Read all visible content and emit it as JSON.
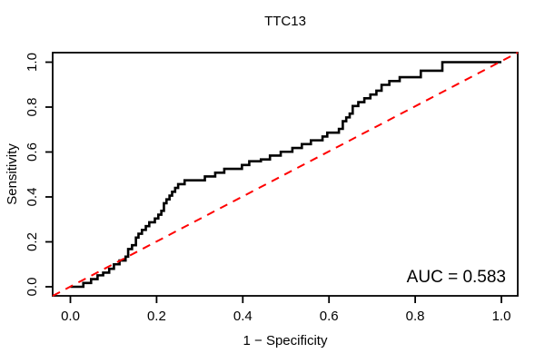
{
  "chart_data": {
    "type": "line",
    "subtype": "roc-step-curve",
    "title": "TTC13",
    "xlabel": "1 − Specificity",
    "ylabel": "Sensitivity",
    "xlim": [
      0,
      1
    ],
    "ylim": [
      0,
      1
    ],
    "grid": false,
    "x_ticks": [
      0.0,
      0.2,
      0.4,
      0.6,
      0.8,
      1.0
    ],
    "y_ticks": [
      0.0,
      0.2,
      0.4,
      0.6,
      0.8,
      1.0
    ],
    "x_tick_labels": [
      "0.0",
      "0.2",
      "0.4",
      "0.6",
      "0.8",
      "1.0"
    ],
    "y_tick_labels": [
      "0.0",
      "0.2",
      "0.4",
      "0.6",
      "0.8",
      "1.0"
    ],
    "annotation": "AUC = 0.583",
    "auc_value": 0.583,
    "series": [
      {
        "name": "roc-curve",
        "type": "step",
        "color": "#000000",
        "line_style": "solid",
        "points": [
          [
            0.0,
            0.0
          ],
          [
            0.03,
            0.017
          ],
          [
            0.048,
            0.034
          ],
          [
            0.063,
            0.051
          ],
          [
            0.076,
            0.063
          ],
          [
            0.09,
            0.08
          ],
          [
            0.101,
            0.1
          ],
          [
            0.114,
            0.117
          ],
          [
            0.128,
            0.134
          ],
          [
            0.134,
            0.168
          ],
          [
            0.143,
            0.185
          ],
          [
            0.152,
            0.219
          ],
          [
            0.158,
            0.236
          ],
          [
            0.166,
            0.253
          ],
          [
            0.175,
            0.27
          ],
          [
            0.183,
            0.287
          ],
          [
            0.196,
            0.304
          ],
          [
            0.204,
            0.321
          ],
          [
            0.211,
            0.338
          ],
          [
            0.217,
            0.372
          ],
          [
            0.223,
            0.389
          ],
          [
            0.23,
            0.406
          ],
          [
            0.236,
            0.423
          ],
          [
            0.243,
            0.44
          ],
          [
            0.25,
            0.457
          ],
          [
            0.265,
            0.474
          ],
          [
            0.312,
            0.491
          ],
          [
            0.336,
            0.508
          ],
          [
            0.357,
            0.525
          ],
          [
            0.398,
            0.542
          ],
          [
            0.415,
            0.559
          ],
          [
            0.442,
            0.567
          ],
          [
            0.463,
            0.584
          ],
          [
            0.488,
            0.601
          ],
          [
            0.515,
            0.618
          ],
          [
            0.537,
            0.635
          ],
          [
            0.558,
            0.652
          ],
          [
            0.585,
            0.669
          ],
          [
            0.596,
            0.686
          ],
          [
            0.623,
            0.703
          ],
          [
            0.632,
            0.737
          ],
          [
            0.64,
            0.754
          ],
          [
            0.648,
            0.771
          ],
          [
            0.655,
            0.805
          ],
          [
            0.668,
            0.822
          ],
          [
            0.682,
            0.839
          ],
          [
            0.696,
            0.856
          ],
          [
            0.71,
            0.873
          ],
          [
            0.722,
            0.899
          ],
          [
            0.74,
            0.916
          ],
          [
            0.764,
            0.933
          ],
          [
            0.813,
            0.962
          ],
          [
            0.863,
            1.0
          ],
          [
            1.0,
            1.0
          ]
        ]
      },
      {
        "name": "chance-diagonal",
        "type": "straight",
        "color": "#FF0000",
        "line_style": "dashed",
        "points": [
          [
            0.0,
            0.0
          ],
          [
            1.0,
            1.0
          ]
        ]
      }
    ]
  }
}
